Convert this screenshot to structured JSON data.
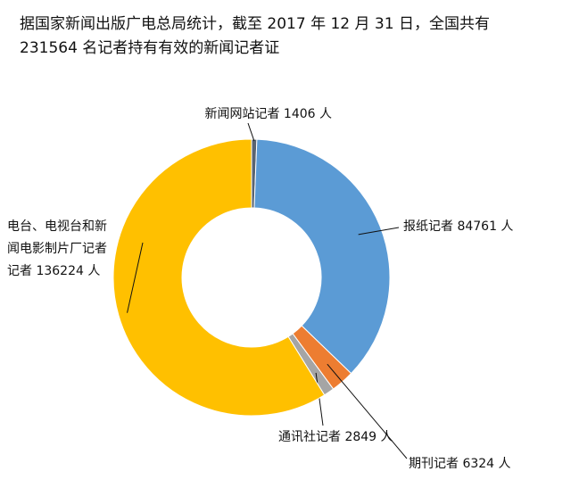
{
  "title": {
    "line1": "据国家新闻出版广电总局统计，截至 2017 年 12 月 31 日，全国共有",
    "line2": "231564 名记者持有有效的新闻记者证"
  },
  "chart_data": {
    "type": "pie",
    "title": "据国家新闻出版广电总局统计，截至 2017 年 12 月 31 日，全国共有 231564 名记者持有有效的新闻记者证",
    "total": 231564,
    "unit": "人",
    "series": [
      {
        "name": "新闻网站记者",
        "value": 1406,
        "color": "#5a6470",
        "label_lines": [
          "新闻网站记者 1406 人"
        ]
      },
      {
        "name": "报纸记者",
        "value": 84761,
        "color": "#5b9bd5",
        "label_lines": [
          "报纸记者 84761 人"
        ]
      },
      {
        "name": "期刊记者",
        "value": 6324,
        "color": "#ed7d31",
        "label_lines": [
          "期刊记者 6324 人"
        ]
      },
      {
        "name": "通讯社记者",
        "value": 2849,
        "color": "#a5a5a5",
        "label_lines": [
          "通讯社记者 2849 人"
        ]
      },
      {
        "name": "电台、电视台和新闻电影制片厂记者",
        "value": 136224,
        "color": "#ffc000",
        "label_lines": [
          "电台、电视台和新",
          "闻电影制片厂记者",
          "记者 136224 人"
        ]
      }
    ]
  }
}
